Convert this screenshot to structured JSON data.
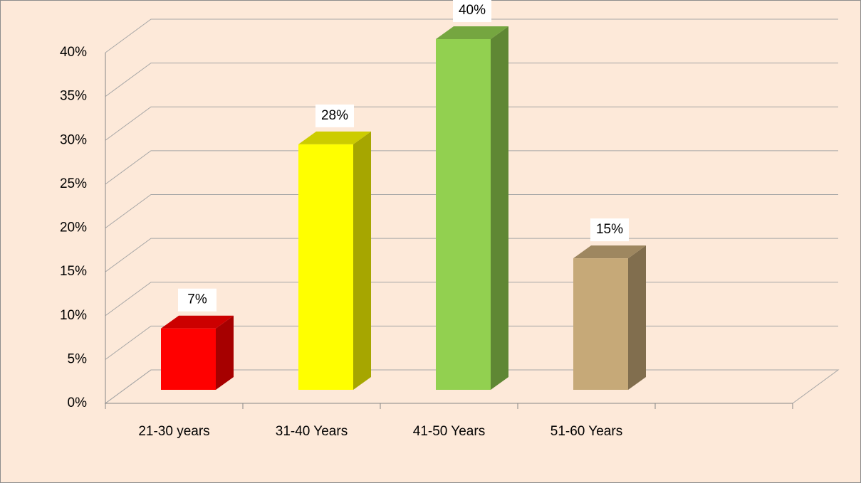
{
  "chart_data": {
    "type": "bar3d",
    "categories": [
      "21-30 years",
      "31-40 Years",
      "41-50 Years",
      "51-60 Years",
      null
    ],
    "values": [
      7,
      28,
      40,
      15,
      null
    ],
    "value_labels": [
      "7%",
      "28%",
      "40%",
      "15%",
      null
    ],
    "colors": [
      "#ff0000",
      "#ffff00",
      "#92d050",
      "#c6a978",
      null
    ],
    "ylim": [
      0,
      40
    ],
    "yticks": [
      {
        "value": 0,
        "label": "0%"
      },
      {
        "value": 5,
        "label": "5%"
      },
      {
        "value": 10,
        "label": "10%"
      },
      {
        "value": 15,
        "label": "15%"
      },
      {
        "value": 20,
        "label": "20%"
      },
      {
        "value": 25,
        "label": "25%"
      },
      {
        "value": 30,
        "label": "30%"
      },
      {
        "value": 35,
        "label": "35%"
      },
      {
        "value": 40,
        "label": "40%"
      }
    ],
    "grid": true
  }
}
